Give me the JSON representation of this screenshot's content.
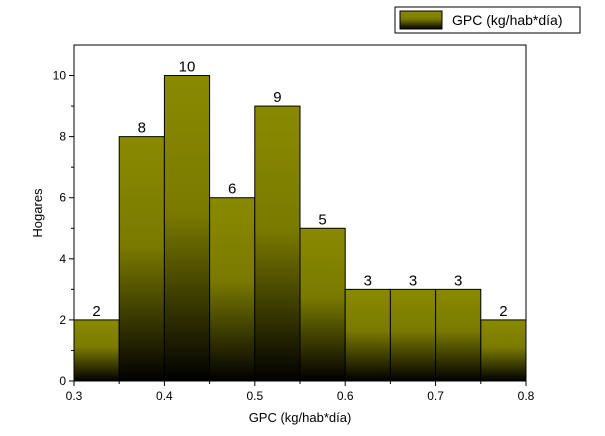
{
  "chart_data": {
    "type": "bar",
    "subtype": "histogram",
    "bins": [
      [
        0.3,
        0.35
      ],
      [
        0.35,
        0.4
      ],
      [
        0.4,
        0.45
      ],
      [
        0.45,
        0.5
      ],
      [
        0.5,
        0.55
      ],
      [
        0.55,
        0.6
      ],
      [
        0.6,
        0.65
      ],
      [
        0.65,
        0.7
      ],
      [
        0.7,
        0.75
      ],
      [
        0.75,
        0.8
      ]
    ],
    "values": [
      2,
      8,
      10,
      6,
      9,
      5,
      3,
      3,
      3,
      2
    ],
    "data_labels": [
      "2",
      "8",
      "10",
      "6",
      "9",
      "5",
      "3",
      "3",
      "3",
      "2"
    ],
    "series": [
      {
        "name": "GPC (kg/hab*día)",
        "values": [
          2,
          8,
          10,
          6,
          9,
          5,
          3,
          3,
          3,
          2
        ]
      }
    ],
    "xlabel": "GPC (kg/hab*día)",
    "ylabel": "Hogares",
    "xlim": [
      0.3,
      0.8
    ],
    "ylim": [
      0,
      11
    ],
    "x_ticks": [
      "0.3",
      "0.4",
      "0.5",
      "0.6",
      "0.7",
      "0.8"
    ],
    "y_ticks": [
      "0",
      "2",
      "4",
      "6",
      "8",
      "10"
    ],
    "grid": false,
    "legend_position": "top-right",
    "colors": {
      "bar_top": "#8a8a00",
      "bar_mid": "#7a7a00",
      "bar_bottom": "#000000",
      "outline": "#000000"
    }
  }
}
